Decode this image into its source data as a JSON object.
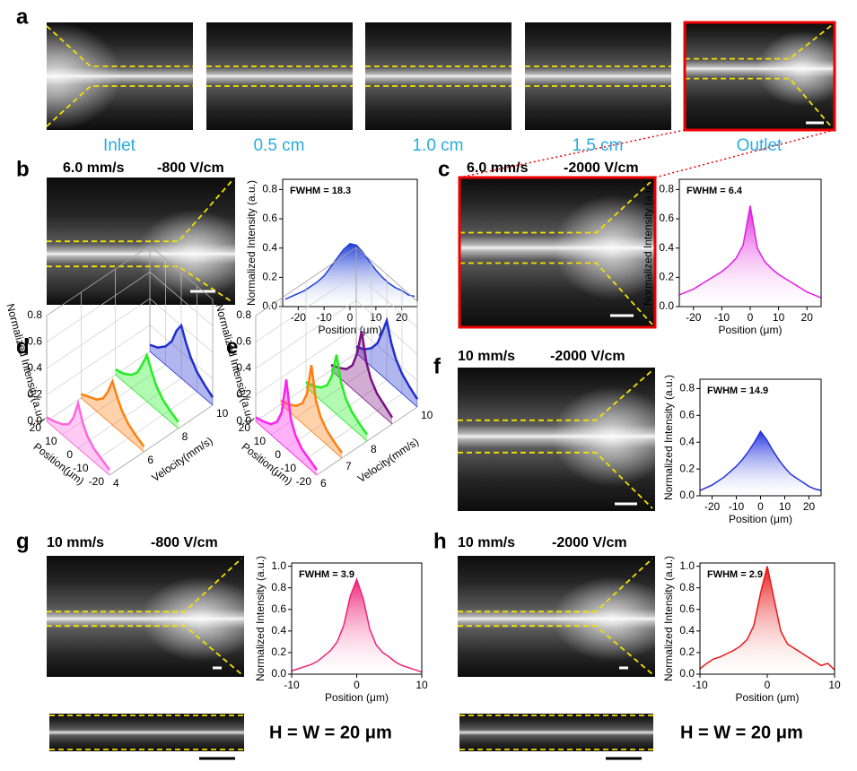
{
  "panels": {
    "a": {
      "label": "a",
      "captions": [
        "Inlet",
        "0.5 cm",
        "1.0 cm",
        "1.5 cm",
        "Outlet"
      ]
    },
    "b": {
      "label": "b",
      "speed": "6.0 mm/s",
      "field": "-800 V/cm"
    },
    "c": {
      "label": "c",
      "speed": "6.0 mm/s",
      "field": "-2000 V/cm"
    },
    "d": {
      "label": "d"
    },
    "e": {
      "label": "e"
    },
    "f": {
      "label": "f",
      "speed": "10 mm/s",
      "field": "-2000 V/cm"
    },
    "g": {
      "label": "g",
      "speed": "10 mm/s",
      "field": "-800 V/cm",
      "note": "H = W = 20 μm"
    },
    "h": {
      "label": "h",
      "speed": "10 mm/s",
      "field": "-2000 V/cm",
      "note": "H = W = 20 μm"
    }
  },
  "chart_data": [
    {
      "type": "profile",
      "annotation": "FWHM = 18.3",
      "xlabel": "Position (μm)",
      "ylabel": "Normalized Intensity (a.u.)",
      "color": "#1f3fd6",
      "x": [
        -25,
        -22.5,
        -20,
        -17.5,
        -15,
        -12.5,
        -10,
        -7.5,
        -5,
        -2.5,
        0,
        2.5,
        5,
        7.5,
        10,
        12.5,
        15,
        17.5,
        20,
        22.5,
        25
      ],
      "values": [
        0.05,
        0.07,
        0.09,
        0.11,
        0.14,
        0.17,
        0.21,
        0.27,
        0.33,
        0.39,
        0.43,
        0.42,
        0.37,
        0.31,
        0.25,
        0.2,
        0.16,
        0.13,
        0.11,
        0.08,
        0.07
      ],
      "xlim": [
        -26,
        26
      ],
      "xticks": [
        -20,
        -10,
        0,
        10,
        20
      ],
      "ylim": [
        0,
        0.87
      ],
      "yticks": [
        {
          "value": 0,
          "label": "0.0"
        },
        0.2,
        0.4,
        0.6,
        0.8
      ]
    },
    {
      "type": "profile",
      "annotation": "FWHM = 6.4",
      "xlabel": "Position (μm)",
      "ylabel": "Normalized Intensity (a.u.)",
      "color": "#e020e0",
      "x": [
        -25,
        -22.5,
        -20,
        -17.5,
        -15,
        -12.5,
        -10,
        -7.5,
        -5,
        -2.5,
        0,
        2.5,
        5,
        7.5,
        10,
        12.5,
        15,
        17.5,
        20,
        22.5,
        25
      ],
      "values": [
        0.08,
        0.1,
        0.12,
        0.15,
        0.18,
        0.21,
        0.24,
        0.28,
        0.33,
        0.42,
        0.69,
        0.4,
        0.31,
        0.26,
        0.22,
        0.19,
        0.16,
        0.13,
        0.1,
        0.08,
        0.06
      ],
      "xlim": [
        -25,
        25
      ],
      "xticks": [
        -20,
        -10,
        0,
        10,
        20
      ],
      "ylim": [
        0,
        0.87
      ],
      "yticks": [
        {
          "value": 0,
          "label": "0.0"
        },
        0.2,
        0.4,
        0.6,
        0.8
      ]
    },
    {
      "type": "waterfall",
      "xlabel": "Position(μm)",
      "ylabel": "Normalized Intensity(a.u.)",
      "zlabel": "Velocity(mm/s)",
      "x": [
        -20,
        -15,
        -10,
        -6,
        -3,
        0,
        3,
        6,
        10,
        15,
        20
      ],
      "xlim": [
        -20,
        20
      ],
      "xticks": [
        -20,
        -10,
        0,
        10,
        20
      ],
      "ylim": [
        0,
        0.8
      ],
      "yticks": [
        {
          "value": 0,
          "label": "0.0"
        },
        0.2,
        0.4,
        0.6,
        0.8
      ],
      "zlim": [
        4,
        10
      ],
      "zticks": [
        4,
        6,
        8,
        10
      ],
      "series": [
        {
          "color": "#ff66dd",
          "z": 4,
          "values": [
            0.04,
            0.07,
            0.1,
            0.15,
            0.22,
            0.34,
            0.2,
            0.12,
            0.08,
            0.05,
            0.03
          ]
        },
        {
          "color": "#ff7f0e",
          "z": 6,
          "values": [
            0.04,
            0.07,
            0.11,
            0.17,
            0.24,
            0.33,
            0.22,
            0.14,
            0.09,
            0.06,
            0.03
          ]
        },
        {
          "color": "#22ee22",
          "z": 8,
          "values": [
            0.05,
            0.08,
            0.12,
            0.18,
            0.26,
            0.35,
            0.25,
            0.16,
            0.1,
            0.06,
            0.04
          ]
        },
        {
          "color": "#1f2fd0",
          "z": 10,
          "values": [
            0.06,
            0.1,
            0.15,
            0.22,
            0.3,
            0.4,
            0.33,
            0.22,
            0.14,
            0.08,
            0.05
          ]
        }
      ]
    },
    {
      "type": "waterfall",
      "xlabel": "Position(μm)",
      "ylabel": "Normalized Intensity(a.u.)",
      "zlabel": "Velocity(mm/s)",
      "x": [
        -20,
        -15,
        -10,
        -6,
        -3,
        0,
        3,
        6,
        10,
        15,
        20
      ],
      "xlim": [
        -20,
        20
      ],
      "xticks": [
        -20,
        -10,
        0,
        10,
        20
      ],
      "ylim": [
        0,
        0.8
      ],
      "yticks": [
        {
          "value": 0,
          "label": "0.0"
        },
        0.2,
        0.4,
        0.6,
        0.8
      ],
      "zlim": [
        6,
        10
      ],
      "zticks": [
        6,
        7,
        8,
        10
      ],
      "series": [
        {
          "color": "#ff22ee",
          "z": 6,
          "values": [
            0.04,
            0.07,
            0.1,
            0.16,
            0.25,
            0.52,
            0.24,
            0.14,
            0.08,
            0.05,
            0.03
          ]
        },
        {
          "color": "#ff7f0e",
          "z": 7,
          "values": [
            0.04,
            0.07,
            0.11,
            0.17,
            0.26,
            0.5,
            0.25,
            0.15,
            0.09,
            0.05,
            0.03
          ]
        },
        {
          "color": "#22ee22",
          "z": 8,
          "values": [
            0.05,
            0.08,
            0.12,
            0.18,
            0.27,
            0.45,
            0.26,
            0.16,
            0.1,
            0.06,
            0.04
          ]
        },
        {
          "color": "#7a1080",
          "z": 9,
          "values": [
            0.05,
            0.09,
            0.13,
            0.2,
            0.3,
            0.5,
            0.3,
            0.18,
            0.11,
            0.07,
            0.04
          ]
        },
        {
          "color": "#1f2fd0",
          "z": 10,
          "values": [
            0.06,
            0.1,
            0.15,
            0.22,
            0.31,
            0.45,
            0.33,
            0.22,
            0.14,
            0.08,
            0.05
          ]
        }
      ]
    },
    {
      "type": "profile",
      "annotation": "FWHM = 14.9",
      "xlabel": "Position (μm)",
      "ylabel": "Normalized Intensity (a.u.)",
      "color": "#2233dd",
      "x": [
        -25,
        -22.5,
        -20,
        -17.5,
        -15,
        -12.5,
        -10,
        -7.5,
        -5,
        -2.5,
        0,
        2.5,
        5,
        7.5,
        10,
        12.5,
        15,
        17.5,
        20,
        22.5,
        25
      ],
      "values": [
        0.04,
        0.06,
        0.08,
        0.11,
        0.14,
        0.18,
        0.22,
        0.27,
        0.33,
        0.4,
        0.48,
        0.42,
        0.34,
        0.27,
        0.21,
        0.16,
        0.13,
        0.1,
        0.07,
        0.05,
        0.04
      ],
      "xlim": [
        -25,
        25
      ],
      "xticks": [
        -20,
        -10,
        0,
        10,
        20
      ],
      "ylim": [
        0,
        0.87
      ],
      "yticks": [
        {
          "value": 0,
          "label": "0.0"
        },
        0.2,
        0.4,
        0.6,
        0.8
      ]
    },
    {
      "type": "profile",
      "annotation": "FWHM = 3.9",
      "xlabel": "Position (μm)",
      "ylabel": "Normalized Intensity (a.u.)",
      "color": "#ee2277",
      "x": [
        -10,
        -9,
        -8,
        -7,
        -6,
        -5,
        -4,
        -3,
        -2,
        -1,
        0,
        1,
        2,
        3,
        4,
        5,
        6,
        7,
        8,
        9,
        10
      ],
      "values": [
        0.03,
        0.05,
        0.07,
        0.09,
        0.12,
        0.17,
        0.22,
        0.3,
        0.45,
        0.72,
        0.88,
        0.7,
        0.42,
        0.27,
        0.2,
        0.16,
        0.11,
        0.08,
        0.06,
        0.04,
        0.02
      ],
      "xlim": [
        -10,
        10
      ],
      "xticks": [
        -10,
        0,
        10
      ],
      "ylim": [
        0,
        1.03
      ],
      "yticks": [
        {
          "value": 0,
          "label": "0.0"
        },
        0.2,
        0.4,
        0.6,
        0.8,
        {
          "value": 1,
          "label": "1.0"
        }
      ]
    },
    {
      "type": "profile",
      "annotation": "FWHM = 2.9",
      "xlabel": "Position (μm)",
      "ylabel": "Normalized Intensity (a.u.)",
      "color": "#e81818",
      "x": [
        -10,
        -9,
        -8,
        -7,
        -6,
        -5,
        -4,
        -3,
        -2,
        -1,
        0,
        1,
        2,
        3,
        4,
        5,
        6,
        7,
        8,
        9,
        10
      ],
      "values": [
        0.05,
        0.1,
        0.14,
        0.16,
        0.19,
        0.22,
        0.26,
        0.32,
        0.45,
        0.75,
        1.0,
        0.7,
        0.4,
        0.28,
        0.24,
        0.2,
        0.16,
        0.12,
        0.08,
        0.1,
        0.04
      ],
      "xlim": [
        -10,
        10
      ],
      "xticks": [
        -10,
        0,
        10
      ],
      "ylim": [
        0,
        1.03
      ],
      "yticks": [
        {
          "value": 0,
          "label": "0.0"
        },
        0.2,
        0.4,
        0.6,
        0.8,
        {
          "value": 1,
          "label": "1.0"
        }
      ]
    }
  ]
}
